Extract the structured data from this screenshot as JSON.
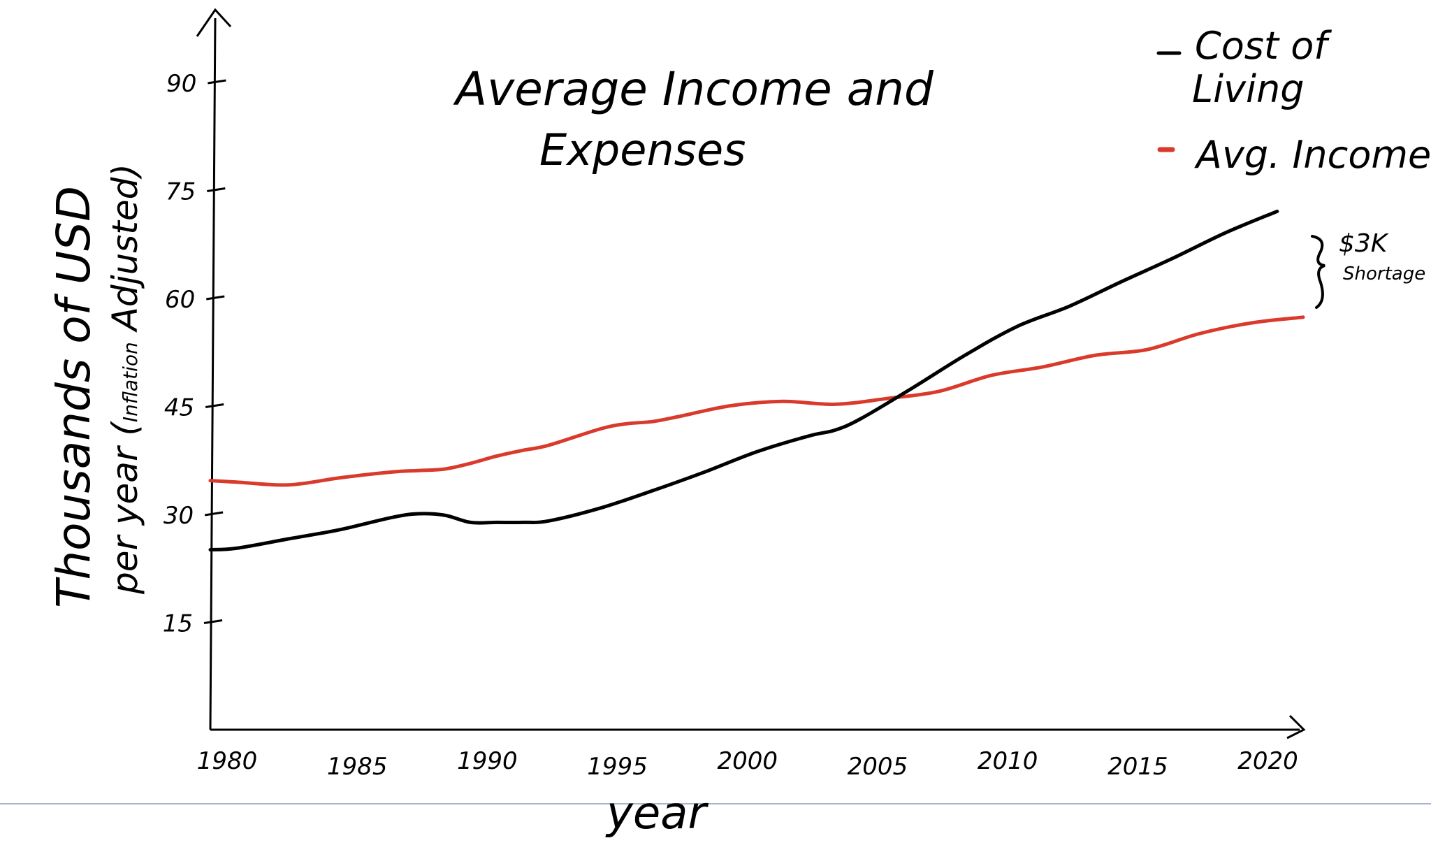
{
  "colors": {
    "cost_of_living": "#000000",
    "avg_income": "#d93a2b",
    "axis": "#000000",
    "guide_line": "#a9b4cc",
    "background": "#ffffff"
  },
  "chart_data": {
    "type": "line",
    "title_line1": "Average Income and",
    "title_line2": "Expenses",
    "xlabel": "year",
    "ylabel_line1": "Thousands of USD",
    "ylabel_line2_pre": "per year (",
    "ylabel_line2_small": "Inflation",
    "ylabel_line2_post": " Adjusted)",
    "xlim": [
      1980,
      2022
    ],
    "ylim": [
      0,
      100
    ],
    "x_ticks": [
      1980,
      1985,
      1990,
      1995,
      2000,
      2005,
      2010,
      2015,
      2020
    ],
    "x_tick_labels": [
      "1980",
      "1985",
      "1990",
      "1995",
      "2000",
      "2005",
      "2010",
      "2015",
      "2020"
    ],
    "y_ticks": [
      15,
      30,
      45,
      60,
      75,
      90
    ],
    "y_tick_labels": [
      "15",
      "30",
      "45",
      "60",
      "75",
      "90"
    ],
    "grid": false,
    "legend_position": "top-right",
    "series": [
      {
        "name": "Cost of Living",
        "legend_line1": "Cost of",
        "legend_line2": "Living",
        "color": "#000000",
        "x": [
          1980,
          1981,
          1983,
          1985,
          1987,
          1988,
          1989,
          1990,
          1991,
          1992,
          1993,
          1995,
          1997,
          1999,
          2001,
          2003,
          2004,
          2005,
          2007,
          2009,
          2011,
          2013,
          2015,
          2017,
          2019,
          2021
        ],
        "y": [
          25.0,
          25.2,
          26.5,
          27.8,
          29.5,
          30.0,
          29.8,
          28.8,
          28.8,
          28.8,
          29.0,
          30.8,
          33.2,
          35.8,
          38.6,
          40.8,
          41.6,
          43.2,
          47.5,
          52.0,
          56.0,
          58.8,
          62.2,
          65.5,
          69.0,
          72.0
        ]
      },
      {
        "name": "Avg. Income",
        "legend_line1": "Avg. Income",
        "color": "#d93a2b",
        "x": [
          1980,
          1981,
          1983,
          1985,
          1987,
          1988,
          1989,
          1990,
          1991,
          1992,
          1993,
          1995,
          1996,
          1997,
          1998,
          2000,
          2002,
          2004,
          2006,
          2008,
          2010,
          2012,
          2014,
          2016,
          2018,
          2020,
          2022
        ],
        "y": [
          34.6,
          34.4,
          34.0,
          35.0,
          35.8,
          36.0,
          36.2,
          37.0,
          38.0,
          38.8,
          39.5,
          41.8,
          42.5,
          42.8,
          43.5,
          45.0,
          45.6,
          45.2,
          46.0,
          47.0,
          49.2,
          50.4,
          52.0,
          52.8,
          55.0,
          56.5,
          57.3
        ]
      }
    ],
    "annotation": {
      "text_line1": "$3K",
      "text_line2": "Shortage"
    }
  }
}
